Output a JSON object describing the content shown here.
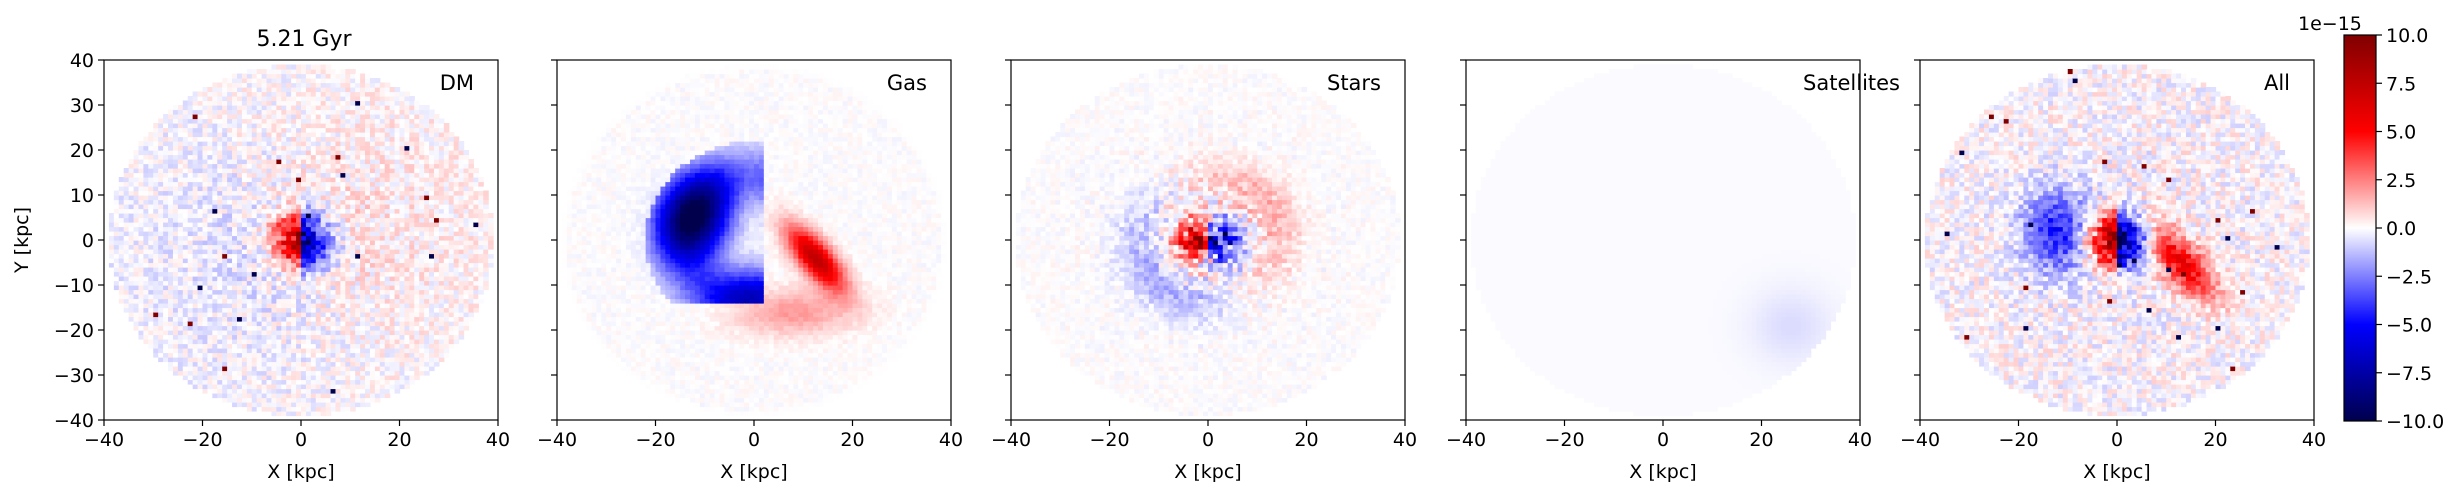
{
  "figure": {
    "title": "5.21 Gyr",
    "colorbar_label": "",
    "colorbar_exponent": "1e−15"
  },
  "chart_data": {
    "type": "heatmap",
    "xlabel": "X [kpc]",
    "ylabel": "Y [kpc]",
    "xlim": [
      -40,
      40
    ],
    "ylim": [
      -40,
      40
    ],
    "xticks": [
      -40,
      -20,
      0,
      20,
      40
    ],
    "yticks": [
      -40,
      -30,
      -20,
      -10,
      0,
      10,
      20,
      30,
      40
    ],
    "xtick_labels": [
      "−40",
      "−20",
      "0",
      "20",
      "40"
    ],
    "ytick_labels": [
      "−40",
      "−30",
      "−20",
      "−10",
      "0",
      "10",
      "20",
      "30",
      "40"
    ],
    "disk_radius": 39,
    "colormap": "seismic",
    "colors": {
      "negative": "#00004c",
      "blue": "#0000ff",
      "zero": "#ffffff",
      "red": "#ff0000",
      "positive": "#800000"
    },
    "colorbar": {
      "range": [
        -10.0,
        10.0
      ],
      "ticks": [
        10.0,
        7.5,
        5.0,
        2.5,
        0.0,
        -2.5,
        -5.0,
        -7.5,
        -10.0
      ],
      "tick_labels": [
        "10.0",
        "7.5",
        "5.0",
        "2.5",
        "0.0",
        "−2.5",
        "−5.0",
        "−7.5",
        "−10.0"
      ],
      "multiplier": "1e−15"
    },
    "panels": [
      {
        "label": "DM",
        "component": "dark matter"
      },
      {
        "label": "Gas",
        "component": "gas"
      },
      {
        "label": "Stars",
        "component": "stars"
      },
      {
        "label": "Satellites",
        "component": "satellites"
      },
      {
        "label": "All",
        "component": "all"
      }
    ]
  }
}
